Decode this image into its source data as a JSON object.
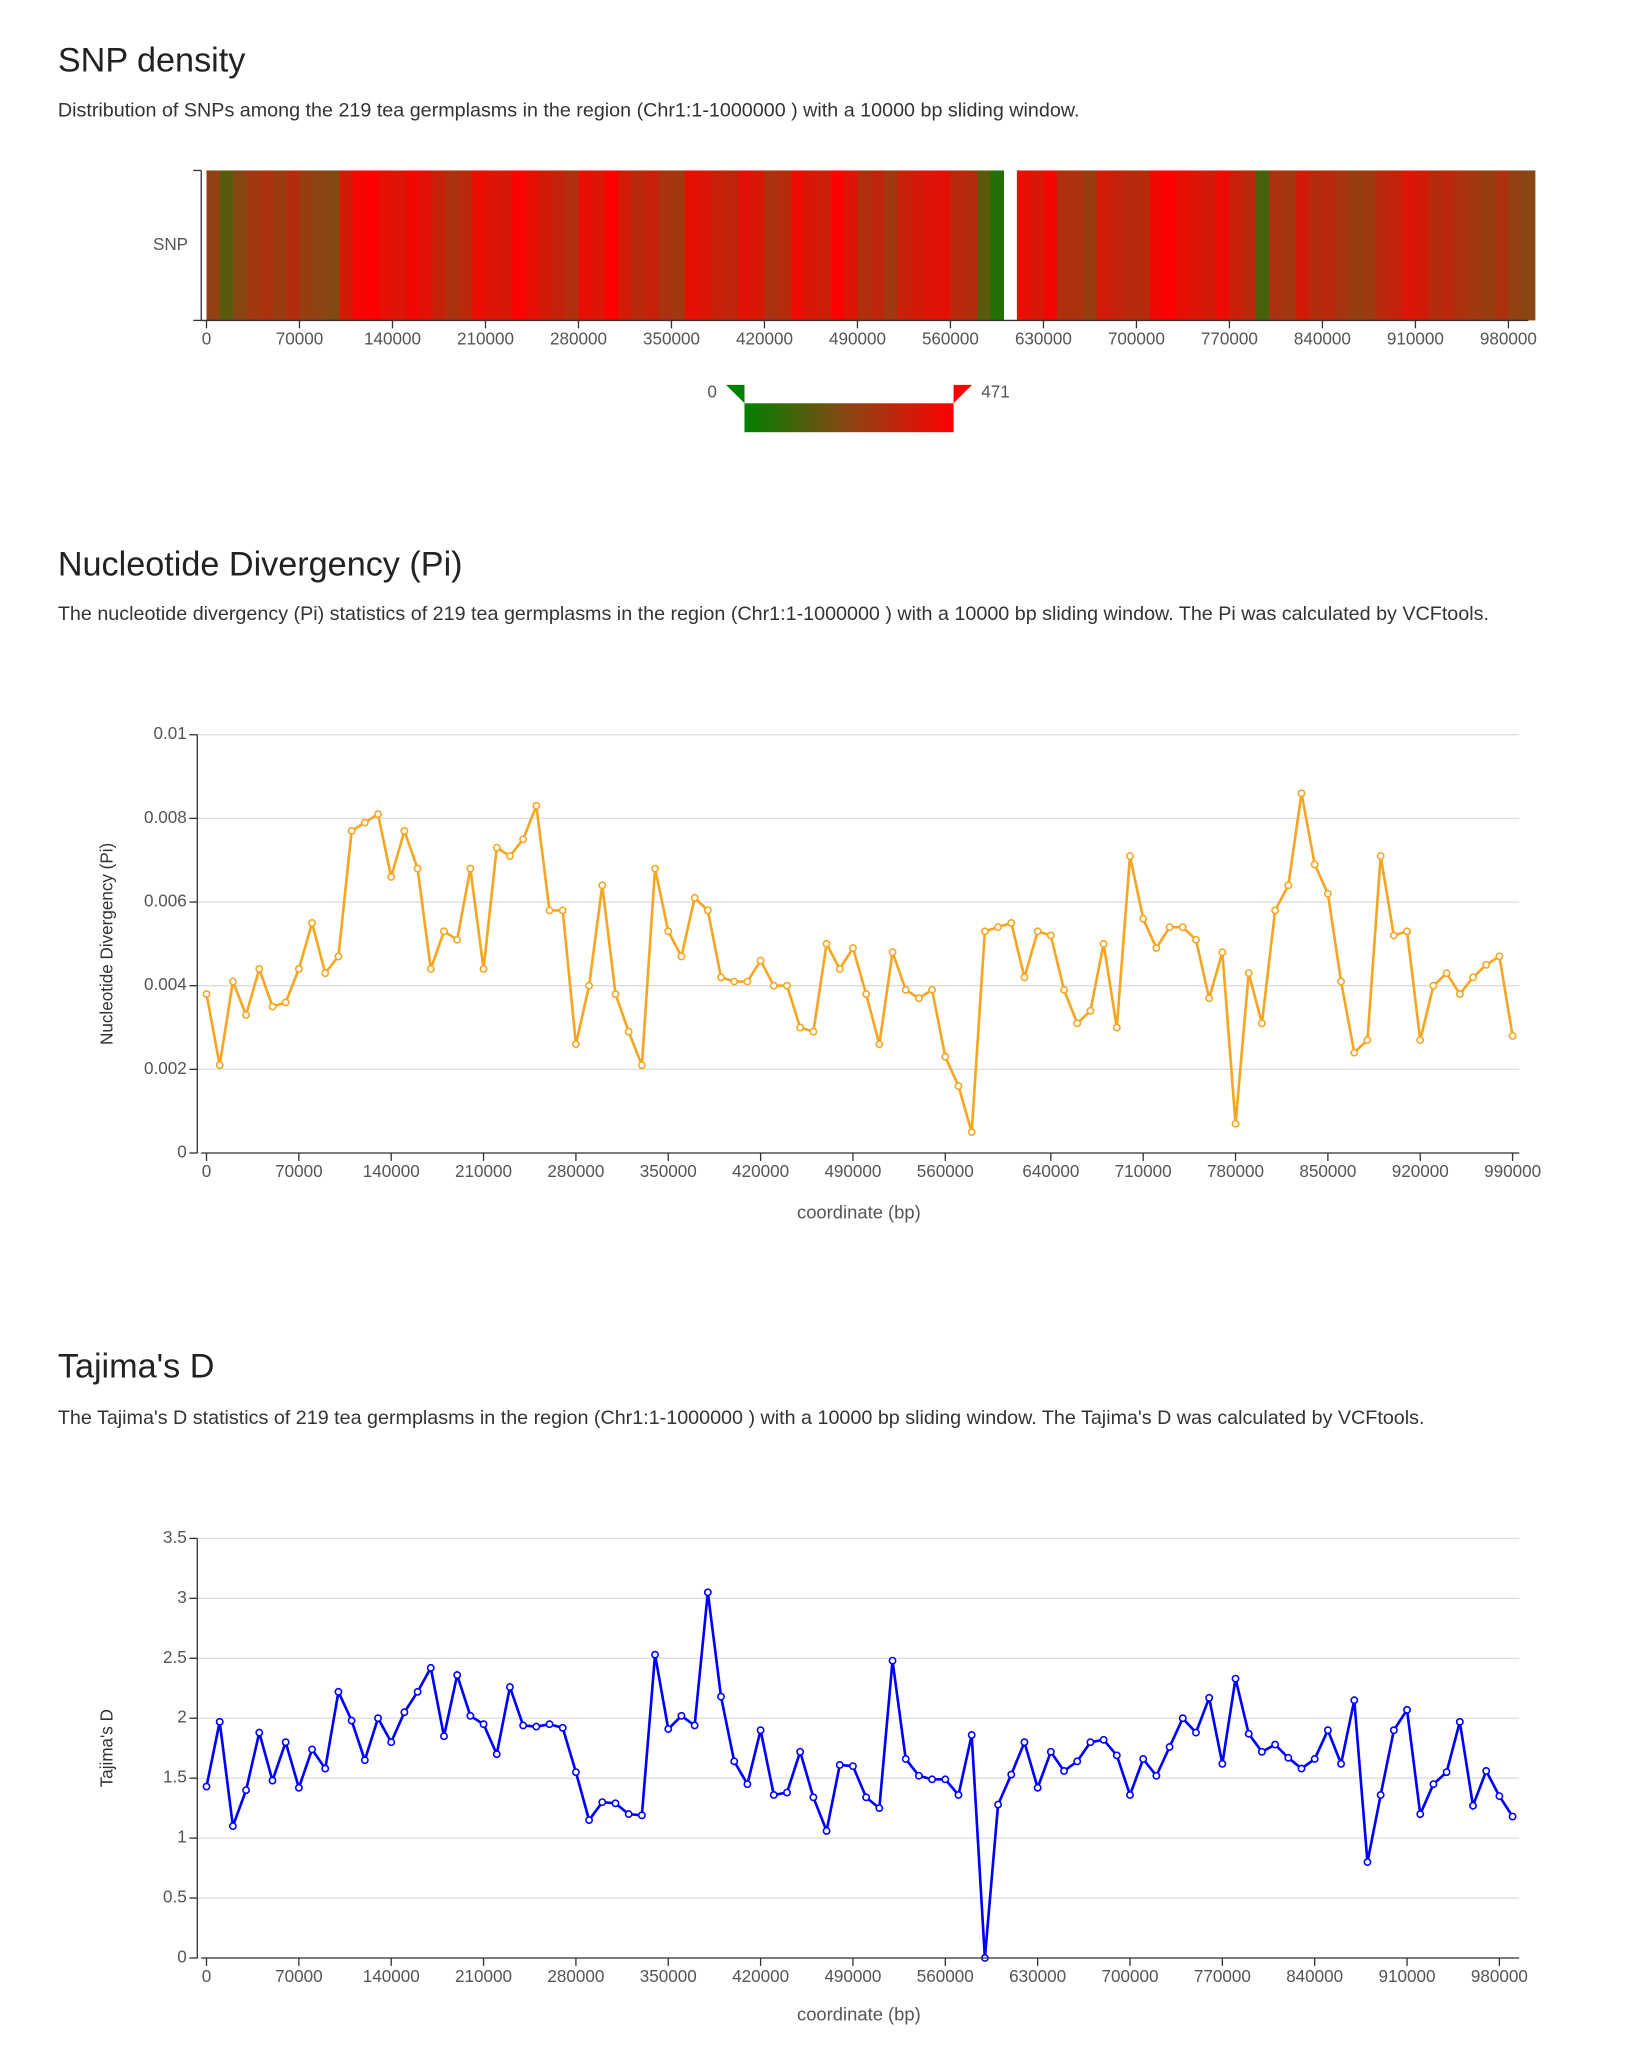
{
  "chart_data": [
    {
      "type": "heatmap",
      "title": "SNP density",
      "subtitle": "Distribution of SNPs among the 219 tea germplasms in the region (Chr1:1-1000000 ) with a 10000 bp sliding window.",
      "categories": [
        "SNP"
      ],
      "x": [
        0,
        10000,
        20000,
        30000,
        40000,
        50000,
        60000,
        70000,
        80000,
        90000,
        100000,
        110000,
        120000,
        130000,
        140000,
        150000,
        160000,
        170000,
        180000,
        190000,
        200000,
        210000,
        220000,
        230000,
        240000,
        250000,
        260000,
        270000,
        280000,
        290000,
        300000,
        310000,
        320000,
        330000,
        340000,
        350000,
        360000,
        370000,
        380000,
        390000,
        400000,
        410000,
        420000,
        430000,
        440000,
        450000,
        460000,
        470000,
        480000,
        490000,
        500000,
        510000,
        520000,
        530000,
        540000,
        550000,
        560000,
        570000,
        580000,
        590000,
        600000,
        610000,
        620000,
        630000,
        640000,
        650000,
        660000,
        670000,
        680000,
        690000,
        700000,
        710000,
        720000,
        730000,
        740000,
        750000,
        760000,
        770000,
        780000,
        790000,
        800000,
        810000,
        820000,
        830000,
        840000,
        850000,
        860000,
        870000,
        880000,
        890000,
        900000,
        910000,
        920000,
        930000,
        940000,
        950000,
        960000,
        970000,
        980000,
        990000
      ],
      "values": [
        250,
        150,
        230,
        280,
        300,
        270,
        320,
        260,
        240,
        220,
        380,
        450,
        470,
        420,
        400,
        440,
        410,
        360,
        300,
        330,
        430,
        400,
        390,
        460,
        420,
        380,
        350,
        310,
        420,
        400,
        471,
        380,
        330,
        360,
        300,
        280,
        420,
        400,
        360,
        340,
        410,
        390,
        300,
        320,
        430,
        390,
        370,
        465,
        400,
        310,
        340,
        280,
        360,
        380,
        400,
        410,
        330,
        320,
        150,
        60,
        null,
        420,
        390,
        440,
        310,
        300,
        260,
        380,
        350,
        330,
        320,
        440,
        471,
        420,
        400,
        380,
        430,
        360,
        330,
        120,
        300,
        280,
        380,
        320,
        330,
        290,
        260,
        270,
        330,
        350,
        400,
        380,
        320,
        330,
        300,
        280,
        260,
        300,
        250,
        230
      ],
      "xlim": [
        0,
        1000000
      ],
      "xticks": [
        0,
        70000,
        140000,
        210000,
        280000,
        350000,
        420000,
        490000,
        560000,
        630000,
        700000,
        770000,
        840000,
        910000,
        980000
      ],
      "color_range": [
        0,
        471
      ],
      "colors": [
        "#008000",
        "#8b4513",
        "#ff0000"
      ]
    },
    {
      "type": "line",
      "title": "Nucleotide Divergency (Pi)",
      "subtitle": "The nucleotide divergency (Pi) statistics of 219 tea germplasms in the region (Chr1:1-1000000 ) with a 10000 bp sliding window. The Pi was calculated by VCFtools.",
      "xlabel": "coordinate (bp)",
      "ylabel": "Nucleotide Divergency (Pi)",
      "x": [
        0,
        10000,
        20000,
        30000,
        40000,
        50000,
        60000,
        70000,
        80000,
        90000,
        100000,
        110000,
        120000,
        130000,
        140000,
        150000,
        160000,
        170000,
        180000,
        190000,
        200000,
        210000,
        220000,
        230000,
        240000,
        250000,
        260000,
        270000,
        280000,
        290000,
        300000,
        310000,
        320000,
        330000,
        340000,
        350000,
        360000,
        370000,
        380000,
        390000,
        400000,
        410000,
        420000,
        430000,
        440000,
        450000,
        460000,
        470000,
        480000,
        490000,
        500000,
        510000,
        520000,
        530000,
        540000,
        550000,
        560000,
        570000,
        580000,
        590000,
        600000,
        610000,
        620000,
        630000,
        640000,
        650000,
        660000,
        670000,
        680000,
        690000,
        700000,
        710000,
        720000,
        730000,
        740000,
        750000,
        760000,
        770000,
        780000,
        790000,
        800000,
        810000,
        820000,
        830000,
        840000,
        850000,
        860000,
        870000,
        880000,
        890000,
        900000,
        910000,
        920000,
        930000,
        940000,
        950000,
        960000,
        970000,
        980000,
        990000
      ],
      "series": [
        {
          "color": "#f5a623",
          "values": [
            0.0038,
            0.0021,
            0.0041,
            0.0033,
            0.0044,
            0.0035,
            0.0036,
            0.0044,
            0.0055,
            0.0043,
            0.0047,
            0.0077,
            0.0079,
            0.0081,
            0.0066,
            0.0077,
            0.0068,
            0.0044,
            0.0053,
            0.0051,
            0.0068,
            0.0044,
            0.0073,
            0.0071,
            0.0075,
            0.0083,
            0.0058,
            0.0058,
            0.0026,
            0.004,
            0.0064,
            0.0038,
            0.0029,
            0.0021,
            0.0068,
            0.0053,
            0.0047,
            0.0061,
            0.0058,
            0.0042,
            0.0041,
            0.0041,
            0.0046,
            0.004,
            0.004,
            0.003,
            0.0029,
            0.005,
            0.0044,
            0.0049,
            0.0038,
            0.0026,
            0.0048,
            0.0039,
            0.0037,
            0.0039,
            0.0023,
            0.0016,
            0.0005,
            0.0053,
            0.0054,
            0.0055,
            0.0042,
            0.0053,
            0.0052,
            0.0039,
            0.0031,
            0.0034,
            0.005,
            0.003,
            0.0071,
            0.0056,
            0.0049,
            0.0054,
            0.0054,
            0.0051,
            0.0037,
            0.0048,
            0.0007,
            0.0043,
            0.0031,
            0.0058,
            0.0064,
            0.0086,
            0.0069,
            0.0062,
            0.0041,
            0.0024,
            0.0027,
            0.0071,
            0.0052,
            0.0053,
            0.0027,
            0.004,
            0.0043,
            0.0038,
            0.0042,
            0.0045,
            0.0047,
            0.0028
          ]
        }
      ],
      "xlim": [
        0,
        1000000
      ],
      "xticks": [
        0,
        70000,
        140000,
        210000,
        280000,
        350000,
        420000,
        490000,
        560000,
        640000,
        710000,
        780000,
        850000,
        920000,
        990000
      ],
      "ylim": [
        0,
        0.01
      ],
      "yticks": [
        0,
        0.002,
        0.004,
        0.006,
        0.008,
        0.01
      ],
      "grid": true
    },
    {
      "type": "line",
      "title": "Tajima's D",
      "subtitle": "The Tajima's D statistics of 219 tea germplasms in the region (Chr1:1-1000000 ) with a 10000 bp sliding window. The Tajima's D was calculated by VCFtools.",
      "xlabel": "coordinate (bp)",
      "ylabel": "Tajima's D",
      "x": [
        0,
        10000,
        20000,
        30000,
        40000,
        50000,
        60000,
        70000,
        80000,
        90000,
        100000,
        110000,
        120000,
        130000,
        140000,
        150000,
        160000,
        170000,
        180000,
        190000,
        200000,
        210000,
        220000,
        230000,
        240000,
        250000,
        260000,
        270000,
        280000,
        290000,
        300000,
        310000,
        320000,
        330000,
        340000,
        350000,
        360000,
        370000,
        380000,
        390000,
        400000,
        410000,
        420000,
        430000,
        440000,
        450000,
        460000,
        470000,
        480000,
        490000,
        500000,
        510000,
        520000,
        530000,
        540000,
        550000,
        560000,
        570000,
        580000,
        590000,
        600000,
        610000,
        620000,
        630000,
        640000,
        650000,
        660000,
        670000,
        680000,
        690000,
        700000,
        710000,
        720000,
        730000,
        740000,
        750000,
        760000,
        770000,
        780000,
        790000,
        800000,
        810000,
        820000,
        830000,
        840000,
        850000,
        860000,
        870000,
        880000,
        890000,
        900000,
        910000,
        920000,
        930000,
        940000,
        950000,
        960000,
        970000,
        980000,
        990000
      ],
      "series": [
        {
          "color": "#0000ff",
          "values": [
            1.43,
            1.97,
            1.1,
            1.4,
            1.88,
            1.48,
            1.8,
            1.42,
            1.74,
            1.58,
            2.22,
            1.98,
            1.65,
            2.0,
            1.8,
            2.05,
            2.22,
            2.42,
            1.85,
            2.36,
            2.02,
            1.95,
            1.7,
            2.26,
            1.94,
            1.93,
            1.95,
            1.92,
            1.55,
            1.15,
            1.3,
            1.29,
            1.2,
            1.19,
            2.53,
            1.91,
            2.02,
            1.94,
            3.05,
            2.18,
            1.64,
            1.45,
            1.9,
            1.36,
            1.38,
            1.72,
            1.34,
            1.06,
            1.61,
            1.6,
            1.34,
            1.25,
            2.48,
            1.66,
            1.52,
            1.49,
            1.49,
            1.36,
            1.86,
            0,
            1.28,
            1.53,
            1.8,
            1.42,
            1.72,
            1.56,
            1.64,
            1.8,
            1.82,
            1.69,
            1.36,
            1.66,
            1.52,
            1.76,
            2.0,
            1.88,
            2.17,
            1.62,
            2.33,
            1.87,
            1.72,
            1.78,
            1.67,
            1.58,
            1.66,
            1.9,
            1.62,
            2.15,
            0.8,
            1.36,
            1.9,
            2.07,
            1.2,
            1.45,
            1.55,
            1.97,
            1.27,
            1.56,
            1.35,
            1.18
          ]
        }
      ],
      "xlim": [
        0,
        1000000
      ],
      "xticks": [
        0,
        70000,
        140000,
        210000,
        280000,
        350000,
        420000,
        490000,
        560000,
        630000,
        700000,
        770000,
        840000,
        910000,
        980000
      ],
      "ylim": [
        0,
        3.5
      ],
      "yticks": [
        0,
        0.5,
        1,
        1.5,
        2,
        2.5,
        3,
        3.5
      ],
      "grid": true
    }
  ]
}
